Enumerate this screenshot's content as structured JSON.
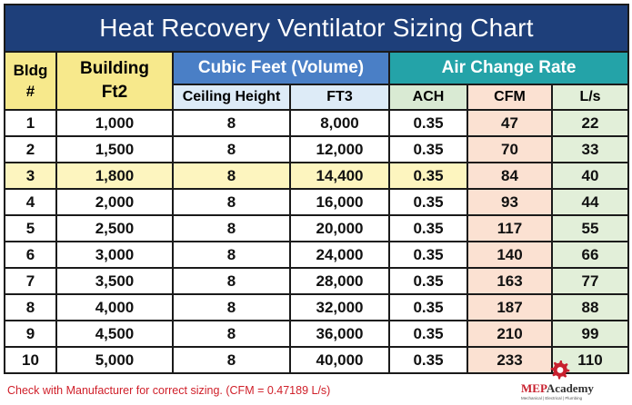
{
  "title": "Heat Recovery Ventilator Sizing Chart",
  "headers": {
    "bldg_line1": "Bldg",
    "bldg_line2": "#",
    "building_line1": "Building",
    "building_line2": "Ft2",
    "cubic_group": "Cubic Feet (Volume)",
    "air_group": "Air Change Rate",
    "ceiling_height": "Ceiling Height",
    "ft3": "FT3",
    "ach": "ACH",
    "cfm": "CFM",
    "ls": "L/s"
  },
  "rows": [
    {
      "bldg": "1",
      "area": "1,000",
      "ceiling": "8",
      "ft3": "8,000",
      "ach": "0.35",
      "cfm": "47",
      "ls": "22"
    },
    {
      "bldg": "2",
      "area": "1,500",
      "ceiling": "8",
      "ft3": "12,000",
      "ach": "0.35",
      "cfm": "70",
      "ls": "33"
    },
    {
      "bldg": "3",
      "area": "1,800",
      "ceiling": "8",
      "ft3": "14,400",
      "ach": "0.35",
      "cfm": "84",
      "ls": "40"
    },
    {
      "bldg": "4",
      "area": "2,000",
      "ceiling": "8",
      "ft3": "16,000",
      "ach": "0.35",
      "cfm": "93",
      "ls": "44"
    },
    {
      "bldg": "5",
      "area": "2,500",
      "ceiling": "8",
      "ft3": "20,000",
      "ach": "0.35",
      "cfm": "117",
      "ls": "55"
    },
    {
      "bldg": "6",
      "area": "3,000",
      "ceiling": "8",
      "ft3": "24,000",
      "ach": "0.35",
      "cfm": "140",
      "ls": "66"
    },
    {
      "bldg": "7",
      "area": "3,500",
      "ceiling": "8",
      "ft3": "28,000",
      "ach": "0.35",
      "cfm": "163",
      "ls": "77"
    },
    {
      "bldg": "8",
      "area": "4,000",
      "ceiling": "8",
      "ft3": "32,000",
      "ach": "0.35",
      "cfm": "187",
      "ls": "88"
    },
    {
      "bldg": "9",
      "area": "4,500",
      "ceiling": "8",
      "ft3": "36,000",
      "ach": "0.35",
      "cfm": "210",
      "ls": "99"
    },
    {
      "bldg": "10",
      "area": "5,000",
      "ceiling": "8",
      "ft3": "40,000",
      "ach": "0.35",
      "cfm": "233",
      "ls": "110"
    }
  ],
  "footnote": "Check with Manufacturer for correct sizing. (CFM = 0.47189 L/s)",
  "logo": {
    "mep": "MEP",
    "academy": "Academy",
    "tagline": "Mechanical | Electrical | Plumbing"
  },
  "colors": {
    "title_bg": "#1e3f7a",
    "cubic_header_bg": "#4a7fc6",
    "air_header_bg": "#24a3a8",
    "highlight_row_bg": "#fdf5bf",
    "footnote": "#d0202a"
  }
}
